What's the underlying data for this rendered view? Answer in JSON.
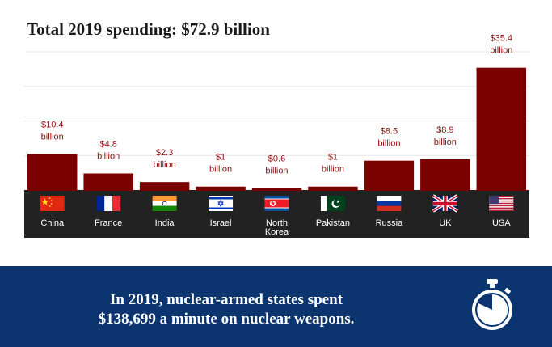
{
  "title": "Total 2019 spending: $72.9 billion",
  "chart_data": {
    "type": "bar",
    "categories": [
      "China",
      "France",
      "India",
      "Israel",
      "North Korea",
      "Pakistan",
      "Russia",
      "UK",
      "USA"
    ],
    "category_lines": [
      [
        "China"
      ],
      [
        "France"
      ],
      [
        "India"
      ],
      [
        "Israel"
      ],
      [
        "North",
        "Korea"
      ],
      [
        "Pakistan"
      ],
      [
        "Russia"
      ],
      [
        "UK"
      ],
      [
        "USA"
      ]
    ],
    "values": [
      10.4,
      4.8,
      2.3,
      1,
      0.6,
      1,
      8.5,
      8.9,
      35.4
    ],
    "value_labels": [
      "$10.4",
      "$4.8",
      "$2.3",
      "$1",
      "$0.6",
      "$1",
      "$8.5",
      "$8.9",
      "$35.4"
    ],
    "unit_label": "billion",
    "flags": [
      "china-flag",
      "france-flag",
      "india-flag",
      "israel-flag",
      "north-korea-flag",
      "pakistan-flag",
      "russia-flag",
      "uk-flag",
      "usa-flag"
    ],
    "ylim": [
      0,
      40
    ],
    "grid": true,
    "legend": "none",
    "colors": {
      "bar": "#7b0000",
      "label": "#8b1010",
      "axis_band": "#222222",
      "grid": "#e6e6e6"
    }
  },
  "banner": {
    "line1": "In 2019, nuclear-armed states spent",
    "line2": "$138,699 a minute on nuclear weapons.",
    "icon": "stopwatch-icon",
    "background": "#0c3570"
  }
}
